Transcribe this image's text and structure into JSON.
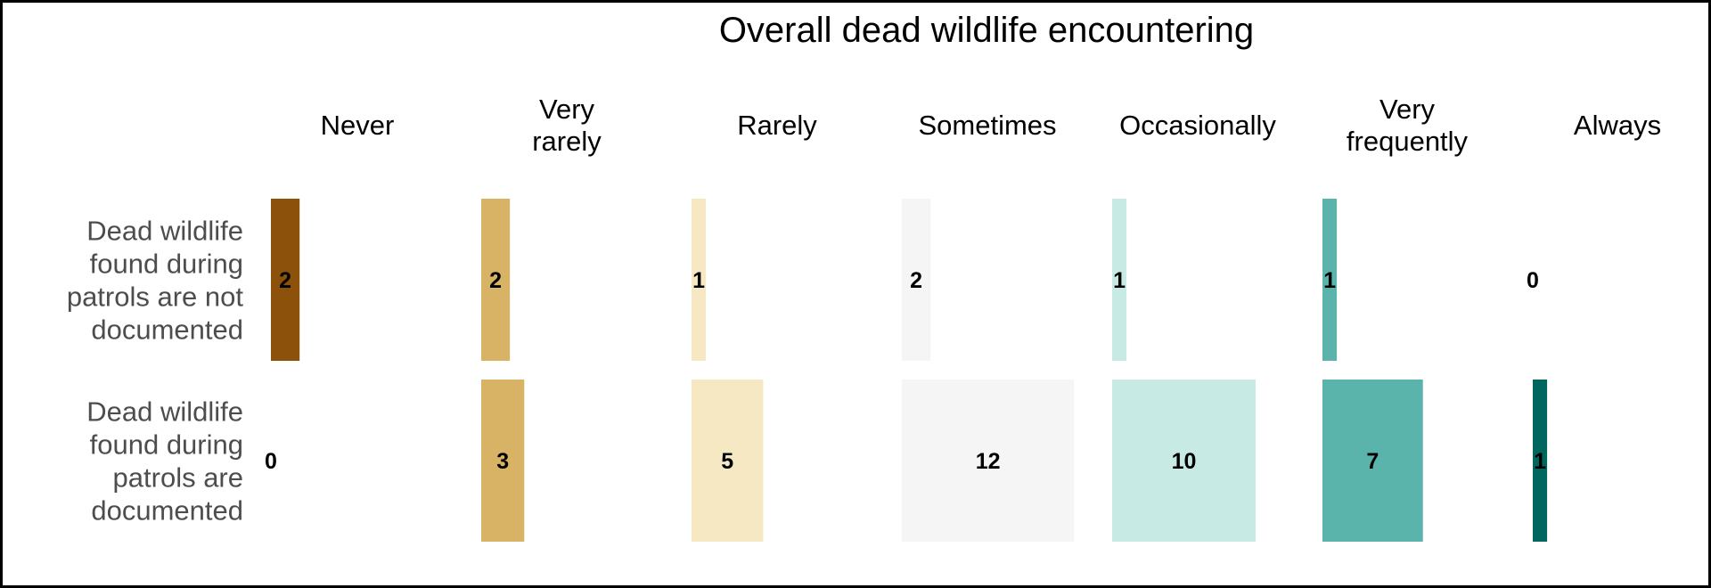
{
  "chart_data": {
    "type": "bar",
    "title": "Overall dead wildlife encountering",
    "categories": [
      "Never",
      "Very rarely",
      "Rarely",
      "Sometimes",
      "Occasionally",
      "Very frequently",
      "Always"
    ],
    "category_label_lines": [
      [
        "Never"
      ],
      [
        "Very",
        "rarely"
      ],
      [
        "Rarely"
      ],
      [
        "Sometimes"
      ],
      [
        "Occasionally"
      ],
      [
        "Very",
        "frequently"
      ],
      [
        "Always"
      ]
    ],
    "colors": [
      "#8c510a",
      "#d8b365",
      "#f6e8c3",
      "#f5f5f5",
      "#c7eae5",
      "#5ab4ac",
      "#01665e"
    ],
    "series": [
      {
        "name": "Dead wildlife found during patrols are not documented",
        "label_lines": [
          "Dead wildlife",
          "found during",
          "patrols are not",
          "documented"
        ],
        "values": [
          2,
          2,
          1,
          2,
          1,
          1,
          0
        ]
      },
      {
        "name": "Dead wildlife found during patrols are documented",
        "label_lines": [
          "Dead wildlife",
          "found during",
          "patrols are",
          "documented"
        ],
        "values": [
          0,
          3,
          5,
          12,
          10,
          7,
          1
        ]
      }
    ],
    "xlabel": "",
    "ylabel": "",
    "grid": false,
    "legend": "none"
  }
}
